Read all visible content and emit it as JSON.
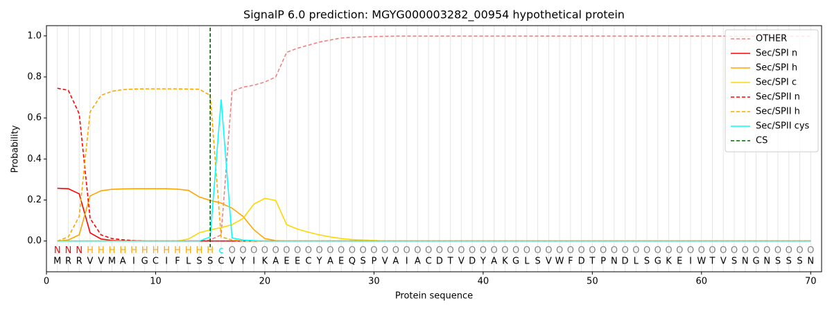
{
  "chart_data": {
    "type": "line",
    "title": "SignalP 6.0 prediction: MGYG000003282_00954 hypothetical protein",
    "x_label": "Protein sequence",
    "y_label": "Probability",
    "xlim": [
      0,
      71
    ],
    "ylim": [
      -0.15,
      1.05
    ],
    "xticks": [
      0,
      10,
      20,
      30,
      40,
      50,
      60,
      70
    ],
    "yticks": [
      {
        "value": 0,
        "label": "0.0"
      },
      {
        "value": 0.2,
        "label": "0.2"
      },
      {
        "value": 0.4,
        "label": "0.4"
      },
      {
        "value": 0.6,
        "label": "0.6"
      },
      {
        "value": 0.8,
        "label": "0.8"
      },
      {
        "value": 1,
        "label": "1.0"
      }
    ],
    "grid": true,
    "legend": "upper right",
    "x": [
      1,
      2,
      3,
      4,
      5,
      6,
      7,
      8,
      9,
      10,
      11,
      12,
      13,
      14,
      15,
      16,
      17,
      18,
      19,
      20,
      21,
      22,
      23,
      24,
      25,
      26,
      27,
      28,
      29,
      30,
      31,
      32,
      33,
      34,
      35,
      36,
      37,
      38,
      39,
      40,
      41,
      42,
      43,
      44,
      45,
      46,
      47,
      48,
      49,
      50,
      51,
      52,
      53,
      54,
      55,
      56,
      57,
      58,
      59,
      60,
      61,
      62,
      63,
      64,
      65,
      66,
      67,
      68,
      69,
      70
    ],
    "residues": [
      "M",
      "R",
      "R",
      "V",
      "V",
      "M",
      "A",
      "I",
      "G",
      "C",
      "I",
      "F",
      "L",
      "S",
      "S",
      "C",
      "V",
      "Y",
      "I",
      "K",
      "A",
      "E",
      "E",
      "C",
      "Y",
      "A",
      "E",
      "Q",
      "S",
      "P",
      "V",
      "A",
      "I",
      "A",
      "C",
      "D",
      "T",
      "V",
      "D",
      "Y",
      "A",
      "K",
      "G",
      "L",
      "S",
      "V",
      "W",
      "F",
      "D",
      "T",
      "P",
      "N",
      "D",
      "L",
      "S",
      "G",
      "K",
      "E",
      "I",
      "W",
      "T",
      "V",
      "S",
      "N",
      "G",
      "N",
      "S",
      "S",
      "S",
      "N"
    ],
    "annotations": [
      "N",
      "N",
      "N",
      "H",
      "H",
      "H",
      "H",
      "H",
      "H",
      "H",
      "H",
      "H",
      "H",
      "H",
      "H",
      "c",
      "O",
      "O",
      "O",
      "O",
      "O",
      "O",
      "O",
      "O",
      "O",
      "O",
      "O",
      "O",
      "O",
      "O",
      "O",
      "O",
      "O",
      "O",
      "O",
      "O",
      "O",
      "O",
      "O",
      "O",
      "O",
      "O",
      "O",
      "O",
      "O",
      "O",
      "O",
      "O",
      "O",
      "O",
      "O",
      "O",
      "O",
      "O",
      "O",
      "O",
      "O",
      "O",
      "O",
      "O",
      "O",
      "O",
      "O",
      "O",
      "O",
      "O",
      "O",
      "O",
      "O",
      "O"
    ],
    "annotation_colors": {
      "N": "#ff0000",
      "H": "#ffa500",
      "c": "#00e5ee",
      "O": "#808080"
    },
    "series": [
      {
        "name": "OTHER",
        "color": "#f08080",
        "dash": true,
        "values": [
          0,
          0,
          0,
          0,
          0,
          0,
          0,
          0,
          0,
          0,
          0,
          0,
          0,
          0.001,
          0.005,
          0.03,
          0.73,
          0.75,
          0.76,
          0.775,
          0.8,
          0.92,
          0.94,
          0.955,
          0.97,
          0.98,
          0.99,
          0.993,
          0.995,
          0.997,
          0.998,
          0.999,
          0.999,
          0.999,
          0.999,
          0.999,
          0.999,
          0.999,
          0.999,
          0.999,
          0.999,
          0.999,
          0.999,
          0.999,
          0.999,
          0.999,
          0.999,
          0.999,
          0.999,
          0.999,
          0.999,
          0.999,
          0.999,
          0.999,
          0.999,
          0.999,
          0.999,
          0.999,
          0.999,
          0.999,
          0.999,
          0.999,
          0.998,
          0.998,
          0.998,
          0.998,
          0.998,
          0.998,
          0.998,
          0.998
        ]
      },
      {
        "name": "Sec/SPI n",
        "color": "#ff0000",
        "dash": false,
        "values": [
          0.257,
          0.255,
          0.23,
          0.04,
          0.01,
          0.003,
          0.001,
          0.001,
          0,
          0,
          0,
          0,
          0,
          0,
          0,
          0,
          0,
          0,
          0,
          0,
          0,
          0,
          0,
          0,
          0,
          0,
          0,
          0,
          0,
          0,
          0,
          0,
          0,
          0,
          0,
          0,
          0,
          0,
          0,
          0,
          0,
          0,
          0,
          0,
          0,
          0,
          0,
          0,
          0,
          0,
          0,
          0,
          0,
          0,
          0,
          0,
          0,
          0,
          0,
          0,
          0,
          0,
          0,
          0,
          0,
          0,
          0,
          0,
          0,
          0
        ]
      },
      {
        "name": "Sec/SPI h",
        "color": "#ffa500",
        "dash": false,
        "values": [
          0,
          0.005,
          0.03,
          0.22,
          0.245,
          0.252,
          0.254,
          0.255,
          0.255,
          0.255,
          0.255,
          0.253,
          0.247,
          0.215,
          0.198,
          0.185,
          0.16,
          0.12,
          0.055,
          0.012,
          0.002,
          0,
          0,
          0,
          0,
          0,
          0,
          0,
          0,
          0,
          0,
          0,
          0,
          0,
          0,
          0,
          0,
          0,
          0,
          0,
          0,
          0,
          0,
          0,
          0,
          0,
          0,
          0,
          0,
          0,
          0,
          0,
          0,
          0,
          0,
          0,
          0,
          0,
          0,
          0,
          0,
          0,
          0,
          0,
          0,
          0,
          0,
          0,
          0,
          0
        ]
      },
      {
        "name": "Sec/SPI c",
        "color": "#ffd700",
        "dash": false,
        "values": [
          0,
          0,
          0,
          0,
          0,
          0,
          0,
          0,
          0,
          0,
          0,
          0,
          0.01,
          0.04,
          0.055,
          0.065,
          0.08,
          0.11,
          0.18,
          0.208,
          0.198,
          0.08,
          0.058,
          0.043,
          0.03,
          0.02,
          0.012,
          0.007,
          0.005,
          0.003,
          0,
          0,
          0,
          0,
          0,
          0,
          0,
          0,
          0,
          0,
          0,
          0,
          0,
          0,
          0,
          0,
          0,
          0,
          0,
          0,
          0,
          0,
          0,
          0,
          0,
          0,
          0,
          0,
          0,
          0,
          0,
          0,
          0,
          0,
          0,
          0,
          0,
          0,
          0,
          0
        ]
      },
      {
        "name": "Sec/SPII n",
        "color": "#ff0000",
        "dash": true,
        "values": [
          0.745,
          0.735,
          0.62,
          0.11,
          0.03,
          0.012,
          0.006,
          0.002,
          0,
          0,
          0,
          0,
          0,
          0,
          0,
          0,
          0,
          0,
          0,
          0,
          0,
          0,
          0,
          0,
          0,
          0,
          0,
          0,
          0,
          0,
          0,
          0,
          0,
          0,
          0,
          0,
          0,
          0,
          0,
          0,
          0,
          0,
          0,
          0,
          0,
          0,
          0,
          0,
          0,
          0,
          0,
          0,
          0,
          0,
          0,
          0,
          0,
          0,
          0,
          0,
          0,
          0,
          0,
          0,
          0,
          0,
          0,
          0,
          0,
          0
        ]
      },
      {
        "name": "Sec/SPII h",
        "color": "#ffa500",
        "dash": true,
        "values": [
          0,
          0.02,
          0.12,
          0.63,
          0.71,
          0.73,
          0.738,
          0.741,
          0.742,
          0.742,
          0.742,
          0.742,
          0.741,
          0.74,
          0.71,
          0.02,
          0.005,
          0,
          0,
          0,
          0,
          0,
          0,
          0,
          0,
          0,
          0,
          0,
          0,
          0,
          0,
          0,
          0,
          0,
          0,
          0,
          0,
          0,
          0,
          0,
          0,
          0,
          0,
          0,
          0,
          0,
          0,
          0,
          0,
          0,
          0,
          0,
          0,
          0,
          0,
          0,
          0,
          0,
          0,
          0,
          0,
          0,
          0,
          0,
          0,
          0,
          0,
          0,
          0,
          0
        ]
      },
      {
        "name": "Sec/SPII cys",
        "color": "#00ffff",
        "dash": false,
        "values": [
          0,
          0,
          0,
          0,
          0,
          0,
          0,
          0,
          0,
          0,
          0,
          0,
          0,
          0,
          0.02,
          0.69,
          0.015,
          0.005,
          0.002,
          0,
          0,
          0,
          0,
          0,
          0,
          0,
          0,
          0,
          0,
          0,
          0,
          0,
          0,
          0,
          0,
          0,
          0,
          0,
          0,
          0,
          0,
          0,
          0,
          0,
          0,
          0,
          0,
          0,
          0,
          0,
          0,
          0,
          0,
          0,
          0,
          0,
          0,
          0,
          0,
          0,
          0,
          0,
          0,
          0,
          0,
          0,
          0,
          0,
          0,
          0
        ]
      }
    ],
    "cs": {
      "name": "CS",
      "x": 15,
      "color": "#006400"
    }
  }
}
